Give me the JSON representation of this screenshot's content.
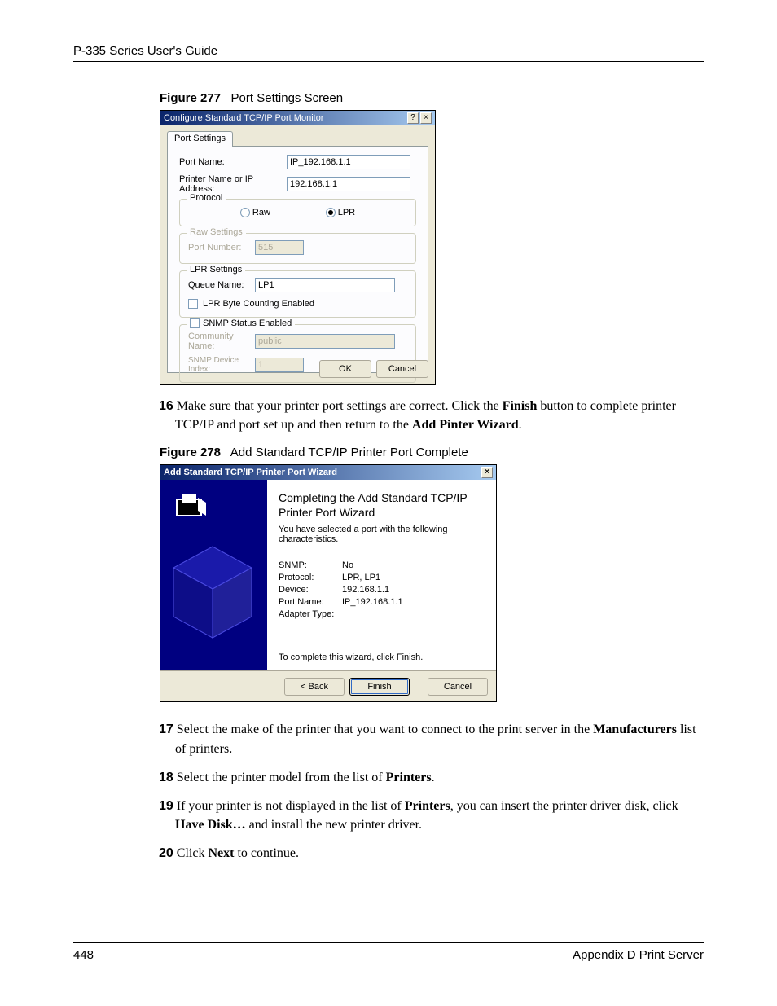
{
  "page_header": "P-335 Series User's Guide",
  "fig277": {
    "caption_label": "Figure 277",
    "caption_title": "Port Settings Screen",
    "dlg_title": "Configure Standard TCP/IP Port Monitor",
    "tab": "Port Settings",
    "port_name_lbl": "Port Name:",
    "port_name_val": "IP_192.168.1.1",
    "printer_addr_lbl": "Printer Name or IP Address:",
    "printer_addr_val": "192.168.1.1",
    "protocol_legend": "Protocol",
    "protocol_raw": "Raw",
    "protocol_lpr": "LPR",
    "raw_legend": "Raw Settings",
    "raw_portnum_lbl": "Port Number:",
    "raw_portnum_val": "515",
    "lpr_legend": "LPR Settings",
    "lpr_queue_lbl": "Queue Name:",
    "lpr_queue_val": "LP1",
    "lpr_bytecount_lbl": "LPR Byte Counting Enabled",
    "snmp_legend": "SNMP Status Enabled",
    "snmp_comm_lbl": "Community Name:",
    "snmp_comm_val": "public",
    "snmp_idx_lbl": "SNMP Device Index:",
    "snmp_idx_val": "1",
    "ok_btn": "OK",
    "cancel_btn": "Cancel"
  },
  "step16": "Make sure that your printer port settings are correct. Click the Finish button to complete printer TCP/IP and port set up and then return to the Add Pinter Wizard.",
  "fig278": {
    "caption_label": "Figure 278",
    "caption_title": "Add Standard TCP/IP Printer Port Complete",
    "dlg_title": "Add Standard TCP/IP Printer Port Wizard",
    "heading": "Completing the Add Standard TCP/IP Printer Port Wizard",
    "subtext": "You have selected a port with the following characteristics.",
    "summary": [
      {
        "k": "SNMP:",
        "v": "No"
      },
      {
        "k": "Protocol:",
        "v": "LPR, LP1"
      },
      {
        "k": "Device:",
        "v": "192.168.1.1"
      },
      {
        "k": "Port Name:",
        "v": "IP_192.168.1.1"
      },
      {
        "k": "Adapter Type:",
        "v": ""
      }
    ],
    "finish_note": "To complete this wizard, click Finish.",
    "back_btn": "< Back",
    "finish_btn": "Finish",
    "cancel_btn": "Cancel"
  },
  "step17": "Select the make of the printer that you want to connect to the print server in the Manufacturers list of printers.",
  "step18": "Select the printer model from the list of Printers.",
  "step19": "If your printer is not displayed in the list of Printers, you can insert the printer driver disk, click Have Disk… and install the new printer driver.",
  "step20": "Click Next to continue.",
  "page_num": "448",
  "appendix": "Appendix D Print Server"
}
